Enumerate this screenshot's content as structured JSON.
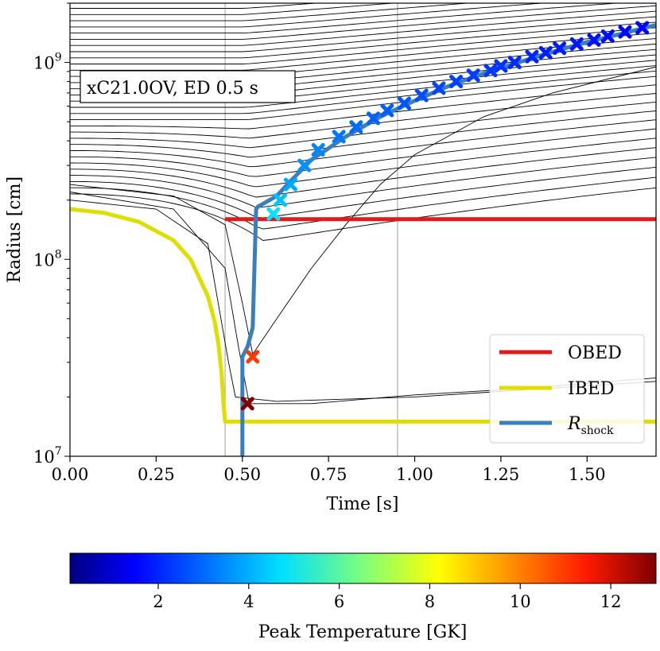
{
  "chart_data": {
    "type": "line",
    "title": "",
    "annotation": "xC21.0OV, ED 0.5 s",
    "xlabel": "Time [s]",
    "ylabel": "Radius [cm]",
    "xlim": [
      0.0,
      1.7
    ],
    "ylim": [
      10000000.0,
      2000000000.0
    ],
    "yscale": "log",
    "x_ticks": [
      0.0,
      0.25,
      0.5,
      0.75,
      1.0,
      1.25,
      1.5
    ],
    "x_tick_labels": [
      "0.00",
      "0.25",
      "0.50",
      "0.75",
      "1.00",
      "1.25",
      "1.50"
    ],
    "y_ticks_major": [
      {
        "value": 10000000.0,
        "base": "10",
        "exp": "7"
      },
      {
        "value": 100000000.0,
        "base": "10",
        "exp": "8"
      },
      {
        "value": 1000000000.0,
        "base": "10",
        "exp": "9"
      }
    ],
    "vertical_lines": [
      0.45,
      0.95
    ],
    "series": [
      {
        "name": "OBED",
        "label": "OBED",
        "color": "#e31a1c",
        "x": [
          0.45,
          1.7
        ],
        "y": [
          160000000.0,
          160000000.0
        ]
      },
      {
        "name": "IBED",
        "label": "IBED",
        "color": "#dede00",
        "x": [
          0.0,
          0.1,
          0.2,
          0.3,
          0.35,
          0.4,
          0.42,
          0.43,
          0.44,
          0.445,
          0.45,
          1.7
        ],
        "y": [
          180000000.0,
          172000000.0,
          155000000.0,
          125000000.0,
          100000000.0,
          65000000.0,
          48000000.0,
          38000000.0,
          26000000.0,
          19000000.0,
          15000000.0,
          15000000.0
        ]
      },
      {
        "name": "R_shock",
        "label": "R",
        "label_sub": "shock",
        "color": "#3a7fbd",
        "x": [
          0.5,
          0.5,
          0.515,
          0.53,
          0.54,
          0.545,
          0.6,
          0.64,
          0.7,
          0.8,
          0.9,
          1.0,
          1.1,
          1.2,
          1.3,
          1.4,
          1.5,
          1.6,
          1.7
        ],
        "y": [
          10000000.0,
          32000000.0,
          36000000.0,
          45000000.0,
          180000000.0,
          185000000.0,
          210000000.0,
          250000000.0,
          320000000.0,
          420000000.0,
          530000000.0,
          640000000.0,
          760000000.0,
          880000000.0,
          1000000000.0,
          1130000000.0,
          1270000000.0,
          1400000000.0,
          1550000000.0
        ]
      }
    ],
    "shock_markers": {
      "x": [
        0.515,
        0.53,
        0.59,
        0.61,
        0.64,
        0.68,
        0.72,
        0.78,
        0.83,
        0.88,
        0.92,
        0.97,
        1.02,
        1.07,
        1.12,
        1.17,
        1.22,
        1.25,
        1.29,
        1.34,
        1.38,
        1.42,
        1.47,
        1.52,
        1.56,
        1.61,
        1.66
      ],
      "y": [
        18500000.0,
        32000000.0,
        170000000.0,
        200000000.0,
        240000000.0,
        300000000.0,
        360000000.0,
        420000000.0,
        470000000.0,
        520000000.0,
        570000000.0,
        620000000.0,
        680000000.0,
        740000000.0,
        800000000.0,
        860000000.0,
        910000000.0,
        960000000.0,
        1000000000.0,
        1070000000.0,
        1120000000.0,
        1180000000.0,
        1240000000.0,
        1300000000.0,
        1360000000.0,
        1430000000.0,
        1500000000.0
      ],
      "peak_temperature_GK": [
        13.0,
        11.0,
        4.8,
        4.3,
        3.9,
        3.6,
        3.4,
        3.2,
        3.0,
        2.9,
        2.8,
        2.7,
        2.6,
        2.5,
        2.4,
        2.35,
        2.3,
        2.2,
        2.1,
        2.0,
        1.9,
        1.85,
        1.8,
        1.7,
        1.6,
        1.55,
        1.5
      ]
    },
    "colorbar": {
      "label": "Peak Temperature [GK]",
      "colormap": "jet",
      "range": [
        0.05,
        13.0
      ],
      "ticks": [
        2,
        4,
        6,
        8,
        10,
        12
      ],
      "tick_labels": [
        "2",
        "4",
        "6",
        "8",
        "10",
        "12"
      ]
    },
    "legend": {
      "placement": "lower-right",
      "entries": [
        "OBED",
        "IBED",
        "R_shock"
      ]
    }
  }
}
